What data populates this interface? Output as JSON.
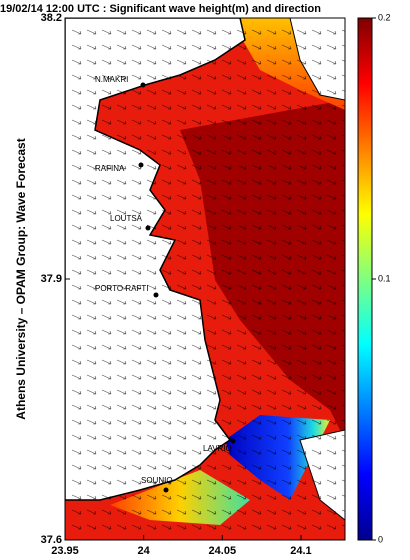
{
  "title": "19/02/14 12:00 UTC : Significant wave height(m) and direction",
  "y_label": "Athens University – OPAM Group: Wave Forecast",
  "map": {
    "xticks": [
      23.95,
      24,
      24.05,
      24.1
    ],
    "yticks": [
      37.6,
      37.9,
      38.2
    ],
    "xlim": [
      23.95,
      24.128
    ],
    "ylim": [
      37.6,
      38.2
    ],
    "places": [
      "N.MAKRI",
      "RAFINA",
      "LOUTSA",
      "PORTO RAFTI",
      "LAVRIO",
      "SOUNIO"
    ]
  },
  "colorbar": {
    "ticks": [
      0,
      0.1,
      0.2
    ],
    "lim": [
      0,
      0.2
    ]
  }
}
